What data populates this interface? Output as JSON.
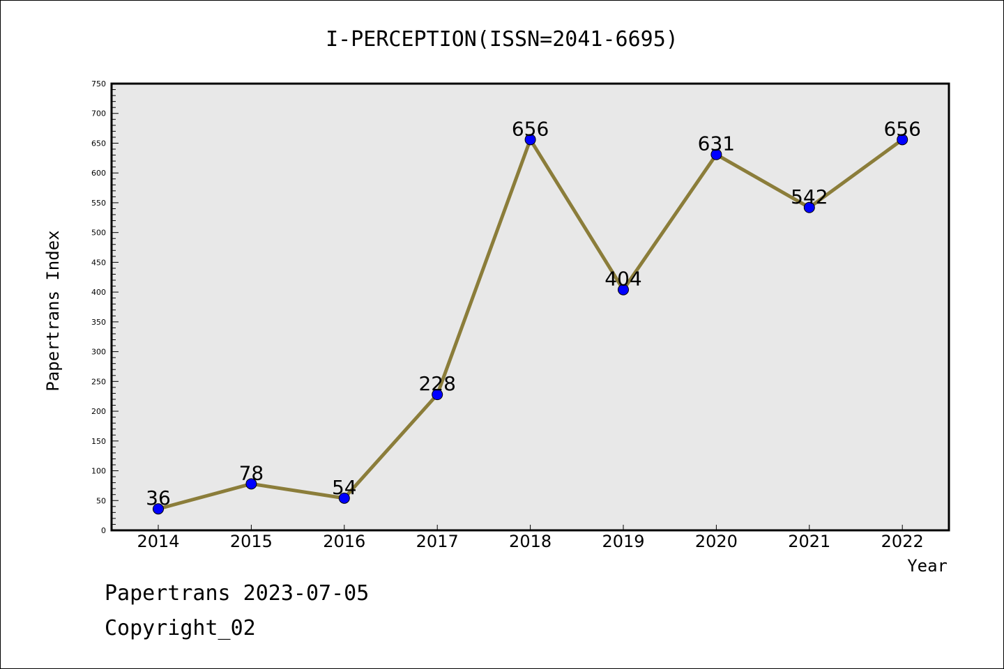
{
  "chart_data": {
    "type": "line",
    "title": "I-PERCEPTION(ISSN=2041-6695)",
    "xlabel": "Year",
    "ylabel": "Papertrans Index",
    "categories": [
      "2014",
      "2015",
      "2016",
      "2017",
      "2018",
      "2019",
      "2020",
      "2021",
      "2022"
    ],
    "values": [
      36,
      78,
      54,
      228,
      656,
      404,
      631,
      542,
      656
    ],
    "ylim": [
      0,
      750
    ],
    "yticks": [
      0,
      50,
      100,
      150,
      200,
      250,
      300,
      350,
      400,
      450,
      500,
      550,
      600,
      650,
      700,
      750
    ],
    "grid": false,
    "data_labels": true,
    "colors": {
      "line": "#8b7d3a",
      "marker": "#0000ff",
      "plot_background": "#e8e8e8"
    }
  },
  "footer": {
    "line1": "Papertrans 2023-07-05",
    "line2": "Copyright_02"
  }
}
